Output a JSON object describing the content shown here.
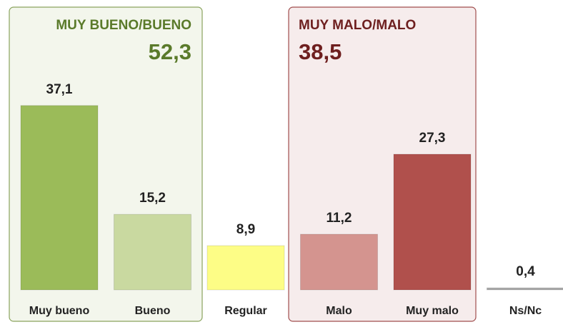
{
  "chart_data": {
    "type": "bar",
    "categories": [
      "Muy bueno",
      "Bueno",
      "Regular",
      "Malo",
      "Muy malo",
      "Ns/Nc"
    ],
    "values": [
      37.1,
      15.2,
      8.9,
      11.2,
      27.3,
      0.4
    ],
    "value_labels": [
      "37,1",
      "15,2",
      "8,9",
      "11,2",
      "27,3",
      "0,4"
    ],
    "colors": [
      "#9bbb59",
      "#c9d9a0",
      "#fdfd86",
      "#d4948f",
      "#b0504c",
      "#a6a6a6"
    ],
    "groups": [
      {
        "title": "MUY BUENO/BUENO",
        "value": 52.3,
        "label": "52,3",
        "color": "#5a7a2a",
        "fill": "#f3f6ec",
        "stroke": "#8aa45e"
      },
      {
        "title": "MUY MALO/MALO",
        "value": 38.5,
        "label": "38,5",
        "color": "#6e1f1f",
        "fill": "#f6ecec",
        "stroke": "#a04d4d"
      }
    ]
  }
}
